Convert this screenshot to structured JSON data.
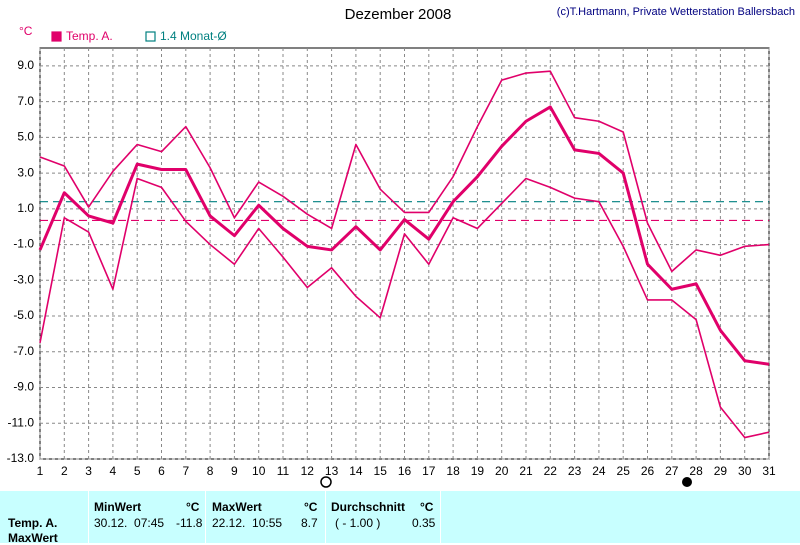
{
  "chart_data": {
    "type": "line",
    "title": "Dezember 2008",
    "credit": "(c)T.Hartmann, Private Wetterstation Ballersbach",
    "y_unit": "°C",
    "legend": [
      {
        "label": "Temp. A.",
        "color": "#e0006a",
        "filled": true
      },
      {
        "label": "1.4 Monat-Ø",
        "color": "#008080",
        "filled": false
      }
    ],
    "x": [
      1,
      2,
      3,
      4,
      5,
      6,
      7,
      8,
      9,
      10,
      11,
      12,
      13,
      14,
      15,
      16,
      17,
      18,
      19,
      20,
      21,
      22,
      23,
      24,
      25,
      26,
      27,
      28,
      29,
      30,
      31
    ],
    "xlim": [
      1,
      31
    ],
    "xticks": [
      1,
      2,
      3,
      4,
      5,
      6,
      7,
      8,
      9,
      10,
      11,
      12,
      13,
      14,
      15,
      16,
      17,
      18,
      19,
      20,
      21,
      22,
      23,
      24,
      25,
      26,
      27,
      28,
      29,
      30,
      31
    ],
    "ylim": [
      -13,
      10
    ],
    "yticks": [
      {
        "value": 9,
        "label": "9.0"
      },
      {
        "value": 7,
        "label": "7.0"
      },
      {
        "value": 5,
        "label": "5.0"
      },
      {
        "value": 3,
        "label": "3.0"
      },
      {
        "value": 1,
        "label": "1.0"
      },
      {
        "value": -1,
        "label": "-1.0"
      },
      {
        "value": -3,
        "label": "-3.0"
      },
      {
        "value": -5,
        "label": "-5.0"
      },
      {
        "value": -7,
        "label": "-7.0"
      },
      {
        "value": -9,
        "label": "-9.0"
      },
      {
        "value": -11,
        "label": "-11.0"
      },
      {
        "value": -13,
        "label": "-13.0"
      }
    ],
    "grid": true,
    "series": [
      {
        "color": "#e0006a",
        "width": 3,
        "values": [
          -1.3,
          1.9,
          0.6,
          0.2,
          3.5,
          3.2,
          3.2,
          0.6,
          -0.5,
          1.2,
          -0.1,
          -1.1,
          -1.3,
          0.0,
          -1.3,
          0.4,
          -0.7,
          1.4,
          2.8,
          4.5,
          5.9,
          6.7,
          4.3,
          4.1,
          3.0,
          -2.1,
          -3.5,
          -3.2,
          -5.8,
          -7.5,
          -7.7
        ]
      },
      {
        "color": "#e0006a",
        "width": 1.6,
        "values": [
          3.9,
          3.4,
          1.1,
          3.1,
          4.6,
          4.2,
          5.6,
          3.3,
          0.5,
          2.5,
          1.7,
          0.7,
          -0.1,
          4.6,
          2.1,
          0.8,
          0.8,
          2.8,
          5.6,
          8.2,
          8.6,
          8.7,
          6.1,
          5.9,
          5.3,
          0.2,
          -2.5,
          -1.3,
          -1.6,
          -1.1,
          -1.0
        ]
      },
      {
        "color": "#e0006a",
        "width": 1.6,
        "values": [
          -6.5,
          0.5,
          -0.3,
          -3.5,
          2.7,
          2.2,
          0.3,
          -1.0,
          -2.1,
          -0.1,
          -1.7,
          -3.4,
          -2.3,
          -3.9,
          -5.1,
          -0.4,
          -2.1,
          0.5,
          -0.1,
          1.3,
          2.7,
          2.2,
          1.6,
          1.4,
          -1.1,
          -4.1,
          -4.1,
          -5.2,
          -10.1,
          -11.8,
          -11.5
        ]
      }
    ],
    "hlines": [
      {
        "value": 1.4,
        "color": "#008080"
      },
      {
        "value": 0.35,
        "color": "#e0006a"
      }
    ]
  },
  "stats": {
    "row_labels": [
      "Temp. A.",
      "MaxWert"
    ],
    "columns": [
      {
        "header": "MinWert",
        "unit": "°C",
        "time": "30.12.  07:45",
        "value": "-11.8"
      },
      {
        "header": "MaxWert",
        "unit": "°C",
        "time": "22.12.  10:55",
        "value": "8.7"
      },
      {
        "header": "Durchschnitt",
        "unit": "°C",
        "time": "( - 1.00 )",
        "value": "0.35"
      }
    ]
  }
}
